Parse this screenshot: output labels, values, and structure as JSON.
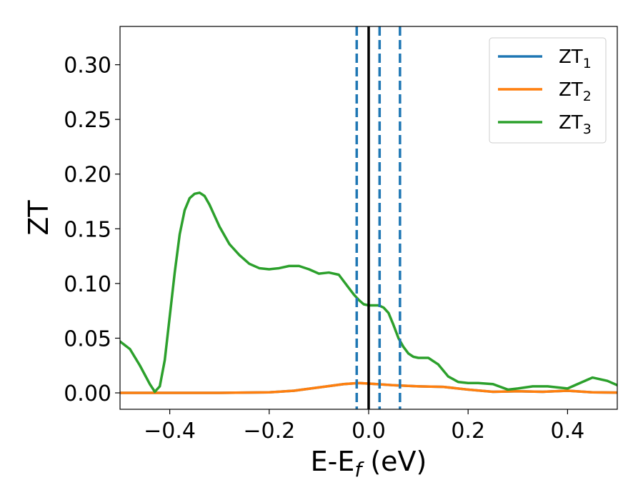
{
  "chart_data": {
    "type": "line",
    "xlabel": "E-E",
    "xlabel_sub": "f",
    "xlabel_unit": " (eV)",
    "ylabel": "ZT",
    "xlim": [
      -0.5,
      0.5
    ],
    "ylim": [
      -0.015,
      0.335
    ],
    "x_ticks": [
      -0.4,
      -0.2,
      0.0,
      0.2,
      0.4
    ],
    "x_tick_labels": [
      "−0.4",
      "−0.2",
      "0.0",
      "0.2",
      "0.4"
    ],
    "y_ticks": [
      0.0,
      0.05,
      0.1,
      0.15,
      0.2,
      0.25,
      0.3
    ],
    "y_tick_labels": [
      "0.00",
      "0.05",
      "0.10",
      "0.15",
      "0.20",
      "0.25",
      "0.30"
    ],
    "grid": false,
    "legend_position": "top-right",
    "vertical_lines": [
      {
        "x": -0.024,
        "style": "dashed",
        "color": "#1f77b4"
      },
      {
        "x": 0.0,
        "style": "solid",
        "color": "#000000"
      },
      {
        "x": 0.022,
        "style": "dashed",
        "color": "#1f77b4"
      },
      {
        "x": 0.063,
        "style": "dashed",
        "color": "#1f77b4"
      }
    ],
    "series": [
      {
        "name": "ZT",
        "subscript": "1",
        "color": "#1f77b4",
        "x": [
          -0.5,
          -0.4,
          -0.3,
          -0.2,
          -0.15,
          -0.1,
          -0.05,
          -0.02,
          0.0,
          0.05,
          0.1,
          0.15,
          0.2,
          0.25,
          0.3,
          0.35,
          0.4,
          0.45,
          0.5
        ],
        "y": [
          0.0,
          0.0,
          0.0,
          0.0005,
          0.002,
          0.005,
          0.008,
          0.009,
          0.0085,
          0.007,
          0.006,
          0.0055,
          0.003,
          0.001,
          0.0015,
          0.001,
          0.002,
          0.0005,
          0.0003
        ]
      },
      {
        "name": "ZT",
        "subscript": "2",
        "color": "#ff7f0e",
        "x": [
          -0.5,
          -0.4,
          -0.3,
          -0.2,
          -0.15,
          -0.1,
          -0.05,
          -0.02,
          0.0,
          0.05,
          0.1,
          0.15,
          0.2,
          0.25,
          0.3,
          0.35,
          0.4,
          0.45,
          0.5
        ],
        "y": [
          0.0,
          0.0,
          0.0,
          0.0005,
          0.002,
          0.005,
          0.008,
          0.009,
          0.0085,
          0.007,
          0.006,
          0.0055,
          0.003,
          0.001,
          0.0015,
          0.001,
          0.002,
          0.0005,
          0.0003
        ]
      },
      {
        "name": "ZT",
        "subscript": "3",
        "color": "#2ca02c",
        "x": [
          -0.5,
          -0.48,
          -0.46,
          -0.44,
          -0.43,
          -0.42,
          -0.41,
          -0.4,
          -0.39,
          -0.38,
          -0.37,
          -0.36,
          -0.35,
          -0.34,
          -0.33,
          -0.32,
          -0.31,
          -0.3,
          -0.28,
          -0.26,
          -0.24,
          -0.22,
          -0.2,
          -0.18,
          -0.16,
          -0.14,
          -0.12,
          -0.1,
          -0.08,
          -0.06,
          -0.04,
          -0.03,
          -0.02,
          -0.01,
          0.0,
          0.01,
          0.02,
          0.03,
          0.04,
          0.05,
          0.06,
          0.07,
          0.08,
          0.09,
          0.1,
          0.12,
          0.14,
          0.16,
          0.18,
          0.2,
          0.22,
          0.25,
          0.28,
          0.3,
          0.33,
          0.36,
          0.38,
          0.4,
          0.42,
          0.45,
          0.48,
          0.5
        ],
        "y": [
          0.047,
          0.04,
          0.025,
          0.008,
          0.001,
          0.006,
          0.03,
          0.07,
          0.11,
          0.145,
          0.167,
          0.178,
          0.182,
          0.183,
          0.18,
          0.172,
          0.162,
          0.152,
          0.136,
          0.126,
          0.118,
          0.114,
          0.113,
          0.114,
          0.116,
          0.116,
          0.113,
          0.109,
          0.11,
          0.108,
          0.096,
          0.09,
          0.085,
          0.081,
          0.08,
          0.08,
          0.08,
          0.078,
          0.073,
          0.062,
          0.05,
          0.042,
          0.036,
          0.033,
          0.032,
          0.032,
          0.026,
          0.015,
          0.01,
          0.009,
          0.009,
          0.008,
          0.003,
          0.004,
          0.006,
          0.006,
          0.005,
          0.004,
          0.008,
          0.014,
          0.011,
          0.007
        ]
      }
    ]
  }
}
